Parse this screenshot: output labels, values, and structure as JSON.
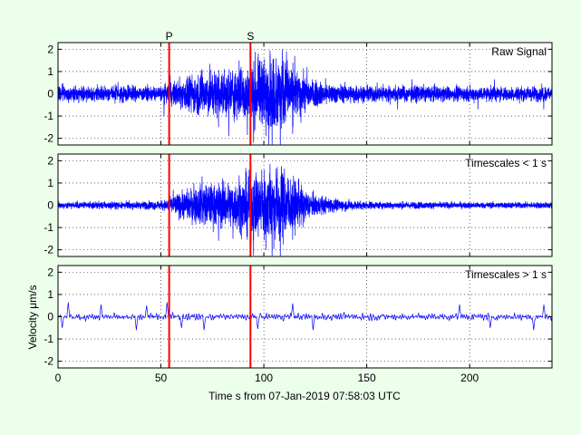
{
  "chart_data": {
    "type": "line",
    "xlabel": "Time s from 07-Jan-2019 07:58:03 UTC",
    "ylabel": "Velocity μm/s",
    "xlim": [
      0,
      240
    ],
    "xticks": [
      0,
      50,
      100,
      150,
      200
    ],
    "ylim": [
      -2.3,
      2.3
    ],
    "yticks": [
      -2,
      -1,
      0,
      1,
      2
    ],
    "grid": true,
    "colors": {
      "signal": "#0000ff",
      "pick": "#ff0000",
      "background": "#ebffeb",
      "axes": "#ffffff"
    },
    "phase_picks": [
      {
        "label": "P",
        "time": 54
      },
      {
        "label": "S",
        "time": 93.5
      }
    ],
    "panels": [
      {
        "label": "Raw Signal",
        "envelope": [
          [
            0,
            0.35
          ],
          [
            10,
            0.4
          ],
          [
            20,
            0.35
          ],
          [
            30,
            0.4
          ],
          [
            40,
            0.35
          ],
          [
            50,
            0.35
          ],
          [
            54,
            0.45
          ],
          [
            58,
            0.65
          ],
          [
            65,
            0.9
          ],
          [
            72,
            1.1
          ],
          [
            80,
            1.15
          ],
          [
            88,
            1.2
          ],
          [
            93,
            1.4
          ],
          [
            98,
            1.6
          ],
          [
            103,
            1.75
          ],
          [
            108,
            1.8
          ],
          [
            112,
            1.45
          ],
          [
            117,
            1.0
          ],
          [
            120,
            0.8
          ],
          [
            125,
            0.6
          ],
          [
            135,
            0.45
          ],
          [
            150,
            0.4
          ],
          [
            200,
            0.35
          ],
          [
            240,
            0.35
          ]
        ],
        "peaks": [
          [
            51.5,
            -1.0
          ],
          [
            54.5,
            0.85
          ],
          [
            70,
            1.1
          ],
          [
            78,
            -1.5
          ],
          [
            83,
            -1.9
          ],
          [
            88,
            1.5
          ],
          [
            92,
            -1.85
          ],
          [
            95,
            -2.2
          ],
          [
            99,
            1.45
          ],
          [
            101,
            -1.9
          ],
          [
            103,
            1.95
          ],
          [
            104,
            -2.3
          ],
          [
            106,
            1.6
          ],
          [
            108,
            -2.3
          ],
          [
            109,
            2.0
          ],
          [
            111,
            1.9
          ],
          [
            114,
            -1.8
          ],
          [
            115,
            1.7
          ],
          [
            118,
            -1.3
          ],
          [
            121,
            1.2
          ],
          [
            130,
            0.7
          ],
          [
            165,
            -0.7
          ],
          [
            172,
            0.65
          ],
          [
            204,
            -0.7
          ],
          [
            212,
            0.65
          ],
          [
            236,
            -0.7
          ]
        ]
      },
      {
        "label": "Timescales < 1 s",
        "envelope": [
          [
            0,
            0.15
          ],
          [
            20,
            0.17
          ],
          [
            40,
            0.18
          ],
          [
            50,
            0.22
          ],
          [
            54,
            0.3
          ],
          [
            58,
            0.55
          ],
          [
            65,
            0.8
          ],
          [
            72,
            1.0
          ],
          [
            80,
            1.05
          ],
          [
            88,
            1.2
          ],
          [
            93,
            1.45
          ],
          [
            98,
            1.6
          ],
          [
            103,
            1.75
          ],
          [
            108,
            1.8
          ],
          [
            112,
            1.45
          ],
          [
            117,
            1.0
          ],
          [
            120,
            0.75
          ],
          [
            125,
            0.5
          ],
          [
            135,
            0.3
          ],
          [
            150,
            0.18
          ],
          [
            200,
            0.15
          ],
          [
            240,
            0.15
          ]
        ],
        "peaks": [
          [
            56,
            0.7
          ],
          [
            66,
            1.0
          ],
          [
            70,
            1.3
          ],
          [
            78,
            -1.6
          ],
          [
            80,
            1.2
          ],
          [
            85,
            -1.5
          ],
          [
            88,
            1.35
          ],
          [
            92,
            -1.55
          ],
          [
            95,
            -2.25
          ],
          [
            99,
            1.6
          ],
          [
            101,
            -2.0
          ],
          [
            103,
            1.85
          ],
          [
            104,
            -2.3
          ],
          [
            106,
            1.65
          ],
          [
            108,
            -2.35
          ],
          [
            110,
            1.65
          ],
          [
            114,
            -1.55
          ],
          [
            117,
            1.2
          ],
          [
            119,
            -1.0
          ]
        ]
      },
      {
        "label": "Timescales > 1 s",
        "envelope": [
          [
            0,
            0.3
          ],
          [
            240,
            0.3
          ]
        ],
        "peaks": [
          [
            2,
            -0.5
          ],
          [
            5,
            0.65
          ],
          [
            21,
            0.55
          ],
          [
            38,
            -0.6
          ],
          [
            43,
            0.5
          ],
          [
            53,
            0.65
          ],
          [
            60,
            -0.5
          ],
          [
            71,
            -0.6
          ],
          [
            97,
            -0.55
          ],
          [
            114,
            0.6
          ],
          [
            124,
            -0.6
          ],
          [
            195,
            0.55
          ],
          [
            210,
            -0.5
          ],
          [
            231,
            -0.6
          ],
          [
            236,
            0.55
          ]
        ]
      }
    ]
  }
}
